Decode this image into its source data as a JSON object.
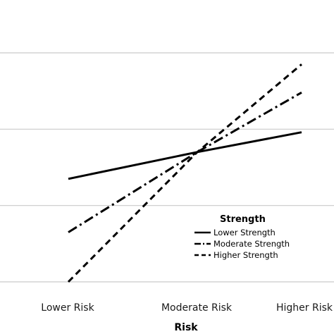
{
  "chart_data": {
    "type": "line",
    "categories": [
      "Lower Risk",
      "Moderate Risk",
      "Higher Risk"
    ],
    "xlabel": "Risk",
    "ylabel": "",
    "grid": true,
    "legend": {
      "title": "Strength",
      "placement": "bottom-right"
    },
    "series": [
      {
        "name": "Lower Strength",
        "values": [
          3.35,
          3.7,
          3.96
        ],
        "dash": "solid",
        "color": "#000000"
      },
      {
        "name": "Moderate Strength",
        "values": [
          2.65,
          3.7,
          4.48
        ],
        "dash": "dashdot",
        "color": "#000000"
      },
      {
        "name": "Higher Strength",
        "values": [
          2.0,
          3.7,
          4.85
        ],
        "dash": "dashed",
        "color": "#000000"
      }
    ],
    "ylim": [
      1.5,
      5.0
    ],
    "yticks": [
      2,
      3,
      4,
      5
    ]
  }
}
